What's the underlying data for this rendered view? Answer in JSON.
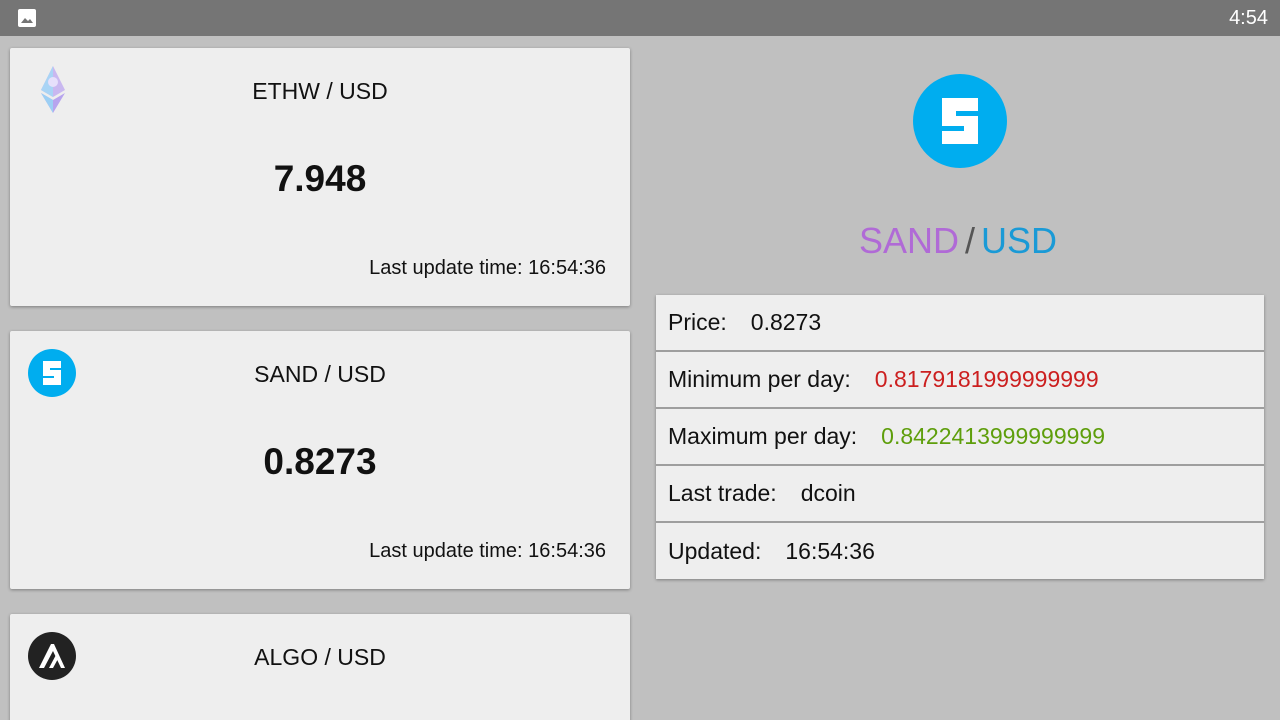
{
  "status_bar": {
    "time": "4:54",
    "icon": "image-icon"
  },
  "cards": [
    {
      "pair": "ETHW / USD",
      "price": "7.948",
      "updated": "Last update time: 16:54:36",
      "icon": "ethw-logo-icon"
    },
    {
      "pair": "SAND / USD",
      "price": "0.8273",
      "updated": "Last update time: 16:54:36",
      "icon": "sand-logo-icon"
    },
    {
      "pair": "ALGO / USD",
      "icon": "algo-logo-icon"
    }
  ],
  "detail": {
    "icon": "sand-logo-icon",
    "base": "SAND",
    "separator": "/",
    "quote": "USD",
    "rows": [
      {
        "label": "Price:",
        "value": "0.8273"
      },
      {
        "label": "Minimum per day:",
        "value": "0.8179181999999999"
      },
      {
        "label": "Maximum per day:",
        "value": "0.8422413999999999"
      },
      {
        "label": "Last trade:",
        "value": "dcoin"
      },
      {
        "label": "Updated:",
        "value": "16:54:36"
      }
    ]
  },
  "colors": {
    "base": "#b06ad6",
    "quote": "#1a9ad6",
    "min": "#cc1f1f",
    "max": "#5e9e0b",
    "sand": "#00adef"
  }
}
